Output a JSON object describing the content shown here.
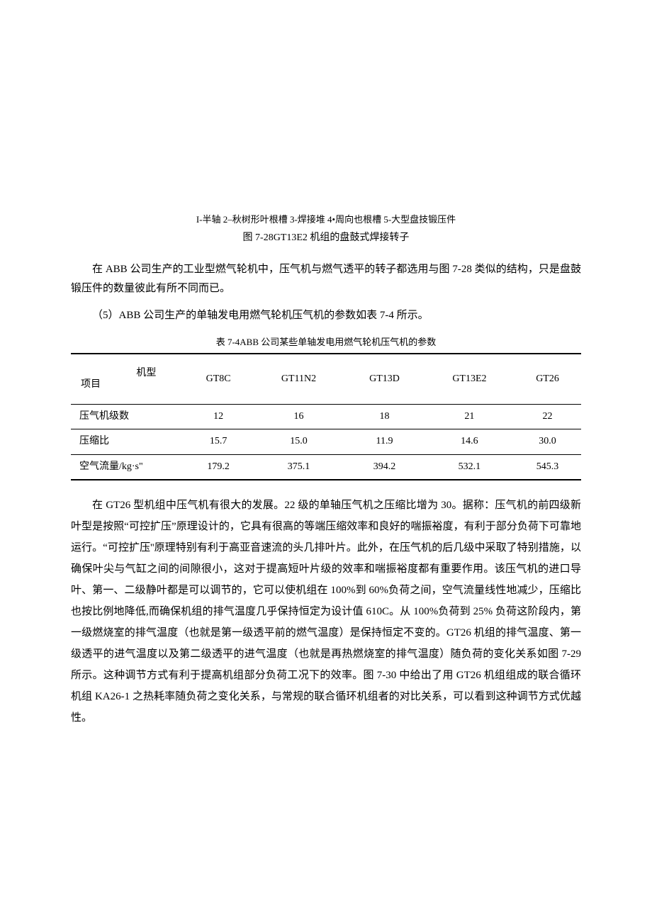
{
  "figure": {
    "caption_parts": "I-半轴 2–秋树形叶根槽 3-焊接堆 4•周向也根槽 5-大型盘技锻压件",
    "caption_title": "图 7-28GT13E2 机组的盘鼓式焊接转子"
  },
  "para1": "在 ABB 公司生产的工业型燃气轮机中，压气机与燃气透平的转子都选用与图 7-28 类似的结构，只是盘鼓锻压件的数量彼此有所不同而已。",
  "para2": "（5）ABB 公司生产的单轴发电用燃气轮机压气机的参数如表 7-4 所示。",
  "table": {
    "caption": "表 7-4ABB 公司某些单轴发电用燃气轮机压气机的参数",
    "header_model": "机型",
    "header_item": "项目",
    "columns": [
      "GT8C",
      "GT11N2",
      "GT13D",
      "GT13E2",
      "GT26"
    ],
    "rows": [
      {
        "label": "压气机级数",
        "values": [
          "12",
          "16",
          "18",
          "21",
          "22"
        ]
      },
      {
        "label": "压缩比",
        "values": [
          "15.7",
          "15.0",
          "11.9",
          "14.6",
          "30.0"
        ]
      },
      {
        "label": "空气流量/kg·s\"",
        "values": [
          "179.2",
          "375.1",
          "394.2",
          "532.1",
          "545.3"
        ]
      }
    ]
  },
  "para3": "在 GT26 型机组中压气机有很大的发展。22 级的单轴压气机之压缩比增为 30。据称：压气机的前四级新叶型是按照“可控扩压”原理设计的，它具有很高的等端压缩效率和良好的喘振裕度，有利于部分负荷下可靠地运行。“可控扩压''原理特别有利于高亚音速流的头几排叶片。此外，在压气机的后几级中采取了特别措施，以确保叶尖与气缸之间的间隙很小，这对于提高短叶片级的效率和喘振裕度都有重要作用。该压气机的进口导叶、第一、二级静叶都是可以调节的，它可以使机组在 100%到 60%负荷之间，空气流量线性地减少，压缩比也按比例地降低,而确保机组的排气温度几乎保持恒定为设计值 610C。从 100%负荷到 25% 负荷这阶段内，第一级燃烧室的排气温度（也就是第一级透平前的燃气温度）是保持恒定不变的。GT26 机组的排气温度、第一级透平的进气温度以及第二级透平的进气温度（也就是再热燃烧室的排气温度）随负荷的变化关系如图 7-29 所示。这种调节方式有利于提高机组部分负荷工况下的效率。图 7-30 中给出了用 GT26 机组组成的联合循环机组 KA26-1 之热耗率随负荷之变化关系，与常规的联合循环机组者的对比关系，可以看到这种调节方式优越性。"
}
